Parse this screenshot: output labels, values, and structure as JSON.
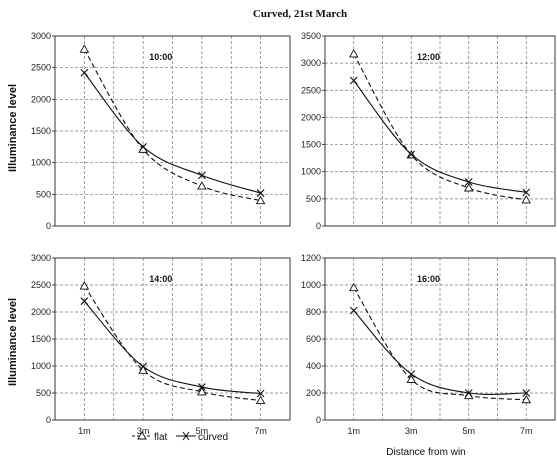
{
  "figure": {
    "title": "Curved,  21st March",
    "legend": [
      {
        "label": "flat",
        "marker": "triangle",
        "dash": "dashed"
      },
      {
        "label": "curved",
        "marker": "x",
        "dash": "solid"
      }
    ]
  },
  "chart_data": [
    {
      "type": "line",
      "panel_label": "10:00",
      "categories": [
        "1m",
        "3m",
        "5m",
        "7m"
      ],
      "ylabel": "Illuminance level",
      "xlabel": "",
      "ylim": [
        0,
        3000
      ],
      "yticks": [
        0,
        500,
        1000,
        1500,
        2000,
        2500,
        3000
      ],
      "grid": true,
      "series": [
        {
          "name": "flat",
          "values": [
            2790,
            1210,
            630,
            400
          ]
        },
        {
          "name": "curved",
          "values": [
            2420,
            1250,
            800,
            520
          ]
        }
      ]
    },
    {
      "type": "line",
      "panel_label": "12:00",
      "categories": [
        "1m",
        "3m",
        "5m",
        "7m"
      ],
      "ylabel": "",
      "xlabel": "",
      "ylim": [
        0,
        3500
      ],
      "yticks": [
        0,
        500,
        1000,
        1500,
        2000,
        2500,
        3000,
        3500
      ],
      "grid": true,
      "series": [
        {
          "name": "flat",
          "values": [
            3170,
            1310,
            700,
            480
          ]
        },
        {
          "name": "curved",
          "values": [
            2680,
            1320,
            810,
            620
          ]
        }
      ]
    },
    {
      "type": "line",
      "panel_label": "14:00",
      "categories": [
        "1m",
        "3m",
        "5m",
        "7m"
      ],
      "ylabel": "Illuminance level",
      "xlabel": "",
      "ylim": [
        0,
        3000
      ],
      "yticks": [
        0,
        500,
        1000,
        1500,
        2000,
        2500,
        3000
      ],
      "grid": true,
      "series": [
        {
          "name": "flat",
          "values": [
            2480,
            920,
            520,
            360
          ]
        },
        {
          "name": "curved",
          "values": [
            2200,
            990,
            610,
            490
          ]
        }
      ]
    },
    {
      "type": "line",
      "panel_label": "16:00",
      "categories": [
        "1m",
        "3m",
        "5m",
        "7m"
      ],
      "ylabel": "",
      "xlabel": "Distance from win",
      "ylim": [
        0,
        1200
      ],
      "yticks": [
        0,
        200,
        400,
        600,
        800,
        1000,
        1200
      ],
      "grid": true,
      "series": [
        {
          "name": "flat",
          "values": [
            980,
            300,
            180,
            150
          ]
        },
        {
          "name": "curved",
          "values": [
            810,
            340,
            200,
            200
          ]
        }
      ]
    }
  ]
}
